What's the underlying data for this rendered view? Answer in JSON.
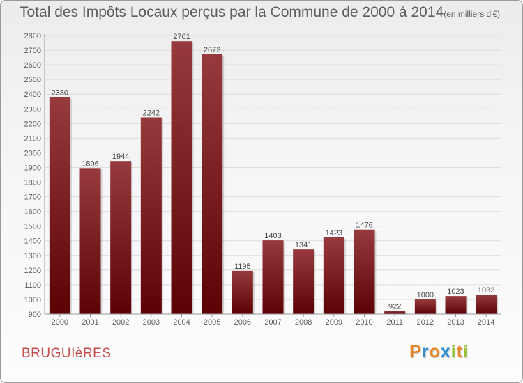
{
  "title": "Total des Impôts Locaux perçus par la Commune de 2000 à 2014",
  "unit": "(en milliers d'€)",
  "commune": "BRUGUIèRES",
  "brand": {
    "letters": [
      "P",
      "r",
      "o",
      "x",
      "i",
      "t",
      "i"
    ],
    "colors": [
      "#e8862a",
      "#2f8fd0",
      "#e8862a",
      "#2f8fd0",
      "#9ac43c",
      "#e8862a",
      "#9ac43c"
    ]
  },
  "colors": {
    "bar_light": "#973a3d",
    "bar_dark": "#5c0205",
    "text": "#5e5e5e",
    "grid": "#dcdcdc",
    "commune": "#c74c4c"
  },
  "chart_data": {
    "type": "bar",
    "title": "Total des Impôts Locaux perçus par la Commune de 2000 à 2014",
    "xlabel": "",
    "ylabel": "",
    "categories": [
      "2000",
      "2001",
      "2002",
      "2003",
      "2004",
      "2005",
      "2006",
      "2007",
      "2008",
      "2009",
      "2010",
      "2011",
      "2012",
      "2013",
      "2014"
    ],
    "values": [
      2380,
      1896,
      1944,
      2242,
      2761,
      2672,
      1195,
      1403,
      1341,
      1423,
      1476,
      922,
      1000,
      1023,
      1032
    ],
    "ylim": [
      900,
      2800
    ],
    "yticks": [
      900,
      1000,
      1100,
      1200,
      1300,
      1400,
      1500,
      1600,
      1700,
      1800,
      1900,
      2000,
      2100,
      2200,
      2300,
      2400,
      2500,
      2600,
      2700,
      2800
    ],
    "grid": true,
    "data_labels": true
  }
}
